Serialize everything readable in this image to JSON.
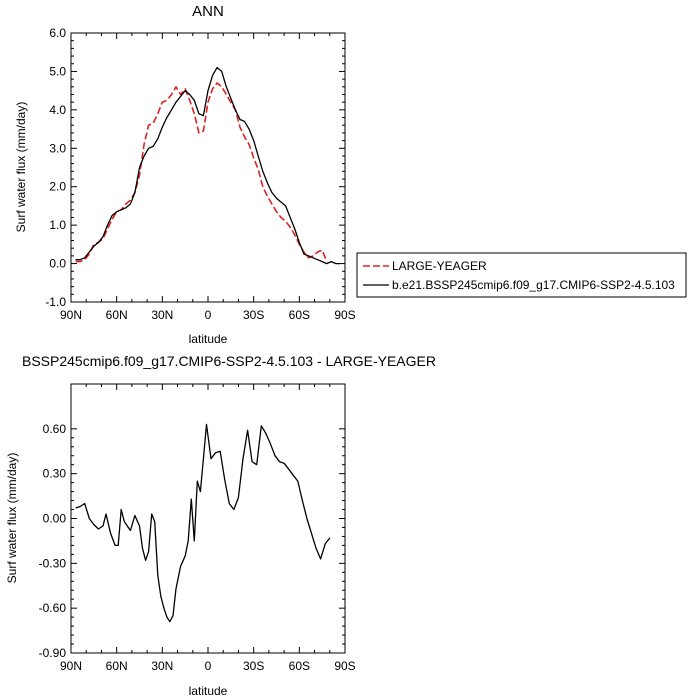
{
  "chart_data": [
    {
      "type": "line",
      "title": "ANN",
      "xlabel": "",
      "ylabel": "Surf water flux (mm/day)",
      "xlim": [
        90,
        -90
      ],
      "ylim": [
        -1.0,
        6.0
      ],
      "x_tick_labels": [
        "90N",
        "60N",
        "30N",
        "0",
        "30S",
        "60S",
        "90S"
      ],
      "y_tick_labels": [
        "-1.0",
        "0.0",
        "1.0",
        "2.0",
        "3.0",
        "4.0",
        "5.0",
        "6.0"
      ],
      "legend_placement": "outside-right",
      "series": [
        {
          "name": "LARGE-YEAGER",
          "color": "#dd2222",
          "dash": true,
          "x": [
            87,
            84,
            81,
            78,
            75,
            72,
            69,
            66,
            63,
            60,
            57,
            54,
            51,
            48,
            45,
            42,
            39,
            36,
            33,
            30,
            27,
            24,
            21,
            18,
            15,
            12,
            9,
            6,
            3,
            0,
            -3,
            -6,
            -9,
            -12,
            -15,
            -18,
            -21,
            -24,
            -27,
            -30,
            -33,
            -36,
            -39,
            -42,
            -45,
            -48,
            -51,
            -54,
            -57,
            -60,
            -63,
            -66,
            -69,
            -72,
            -75,
            -78,
            -81
          ],
          "y": [
            0.05,
            0.05,
            0.1,
            0.25,
            0.5,
            0.55,
            0.65,
            0.9,
            1.15,
            1.35,
            1.4,
            1.55,
            1.65,
            1.85,
            2.3,
            3.1,
            3.6,
            3.65,
            3.9,
            4.2,
            4.25,
            4.4,
            4.6,
            4.4,
            4.55,
            4.25,
            3.9,
            3.4,
            3.45,
            4.2,
            4.55,
            4.7,
            4.6,
            4.4,
            4.2,
            4.0,
            3.55,
            3.3,
            3.1,
            2.75,
            2.45,
            2.0,
            1.75,
            1.55,
            1.35,
            1.2,
            1.1,
            0.95,
            0.75,
            0.5,
            0.3,
            0.15,
            0.2,
            0.3,
            0.35,
            0.05,
            null
          ]
        },
        {
          "name": "b.e21.BSSP245cmip6.f09_g17.CMIP6-SSP2-4.5.103",
          "color": "#000000",
          "dash": false,
          "x": [
            87,
            84,
            81,
            78,
            75,
            72,
            69,
            66,
            63,
            60,
            57,
            54,
            51,
            48,
            45,
            42,
            39,
            36,
            33,
            30,
            27,
            24,
            21,
            18,
            15,
            12,
            9,
            6,
            3,
            0,
            -3,
            -6,
            -9,
            -12,
            -15,
            -18,
            -21,
            -24,
            -27,
            -30,
            -33,
            -36,
            -39,
            -42,
            -45,
            -48,
            -51,
            -54,
            -57,
            -60,
            -63,
            -66,
            -69,
            -72,
            -75,
            -78,
            -81,
            -84,
            -87
          ],
          "y": [
            0.1,
            0.1,
            0.15,
            0.3,
            0.45,
            0.55,
            0.7,
            1.0,
            1.25,
            1.35,
            1.4,
            1.45,
            1.55,
            1.85,
            2.5,
            2.8,
            3.0,
            3.05,
            3.25,
            3.55,
            3.8,
            4.0,
            4.2,
            4.35,
            4.5,
            4.4,
            4.25,
            3.9,
            3.85,
            4.5,
            4.9,
            5.1,
            5.0,
            4.6,
            4.3,
            4.0,
            3.75,
            3.7,
            3.5,
            3.2,
            2.8,
            2.4,
            2.1,
            1.85,
            1.7,
            1.6,
            1.5,
            1.2,
            0.9,
            0.55,
            0.25,
            0.2,
            0.15,
            0.1,
            0.05,
            0.0,
            0.05,
            0.0,
            0.0
          ]
        }
      ]
    },
    {
      "type": "line",
      "title": "BSSP245cmip6.f09_g17.CMIP6-SSP2-4.5.103 - LARGE-YEAGER",
      "xlabel": "latitude",
      "ylabel": "Surf water flux (mm/day)",
      "xlim": [
        90,
        -90
      ],
      "ylim": [
        -0.9,
        0.9
      ],
      "x_tick_labels": [
        "90N",
        "60N",
        "30N",
        "0",
        "30S",
        "60S",
        "90S"
      ],
      "y_tick_labels": [
        "-0.90",
        "-0.60",
        "-0.30",
        "0.00",
        "0.30",
        "0.60"
      ],
      "series": [
        {
          "color": "#000000",
          "dash": false,
          "x": [
            87,
            84,
            81,
            78,
            75,
            72,
            69,
            67,
            64,
            61,
            59,
            57,
            55,
            53,
            51,
            48,
            45,
            43,
            41,
            39,
            37,
            35,
            33,
            31,
            29,
            27,
            25,
            23,
            21,
            18,
            15,
            13,
            11,
            9,
            7,
            5,
            3,
            1,
            -2,
            -5,
            -8,
            -11,
            -14,
            -17,
            -20,
            -23,
            -26,
            -29,
            -32,
            -35,
            -38,
            -41,
            -44,
            -47,
            -50,
            -53,
            -56,
            -59,
            -62,
            -65,
            -68,
            -71,
            -74,
            -77,
            -80
          ],
          "y": [
            0.07,
            0.08,
            0.1,
            0.0,
            -0.04,
            -0.07,
            -0.05,
            0.03,
            -0.1,
            -0.18,
            -0.18,
            0.06,
            -0.02,
            -0.05,
            -0.08,
            0.02,
            -0.05,
            -0.2,
            -0.28,
            -0.22,
            0.03,
            -0.02,
            -0.38,
            -0.52,
            -0.6,
            -0.66,
            -0.69,
            -0.65,
            -0.47,
            -0.32,
            -0.25,
            -0.15,
            0.13,
            -0.15,
            0.25,
            0.18,
            0.4,
            0.63,
            0.4,
            0.44,
            0.45,
            0.26,
            0.1,
            0.06,
            0.14,
            0.4,
            0.59,
            0.38,
            0.36,
            0.62,
            0.57,
            0.5,
            0.42,
            0.38,
            0.37,
            0.33,
            0.29,
            0.25,
            0.12,
            0.0,
            -0.1,
            -0.2,
            -0.27,
            -0.17,
            -0.13
          ]
        }
      ]
    }
  ]
}
